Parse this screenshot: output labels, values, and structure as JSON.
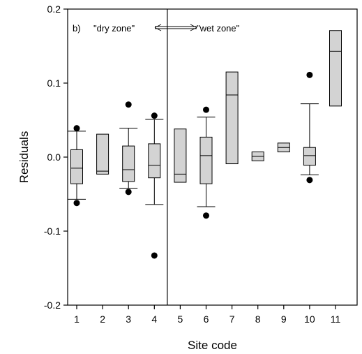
{
  "chart_data": {
    "type": "boxplot",
    "panel_label": "b)",
    "xlabel": "Site code",
    "ylabel": "Residuals",
    "ylim": [
      -0.2,
      0.2
    ],
    "yticks": [
      -0.2,
      -0.1,
      0.0,
      0.1,
      0.2
    ],
    "ytick_labels": [
      "-0.2",
      "-0.1",
      "0.0",
      "0.1",
      "0.2"
    ],
    "grid": false,
    "zone_divider_after_site": 4,
    "annotations": {
      "dry_zone": "\"dry zone\"",
      "wet_zone": "\"wet zone\""
    },
    "box_fill": "#d3d3d3",
    "categories": [
      "1",
      "2",
      "3",
      "4",
      "5",
      "6",
      "7",
      "8",
      "9",
      "10",
      "11"
    ],
    "boxes": [
      {
        "site": "1",
        "q1": -0.036,
        "median": -0.015,
        "q3": 0.01,
        "whisker_low": -0.057,
        "whisker_high": 0.035,
        "outliers": [
          0.039,
          -0.062
        ]
      },
      {
        "site": "2",
        "q1": -0.023,
        "median": -0.019,
        "q3": 0.031,
        "whisker_low": null,
        "whisker_high": null,
        "outliers": []
      },
      {
        "site": "3",
        "q1": -0.033,
        "median": -0.017,
        "q3": 0.015,
        "whisker_low": -0.042,
        "whisker_high": 0.039,
        "outliers": [
          0.071,
          -0.047
        ]
      },
      {
        "site": "4",
        "q1": -0.028,
        "median": -0.011,
        "q3": 0.018,
        "whisker_low": -0.064,
        "whisker_high": 0.051,
        "outliers": [
          0.056,
          -0.133
        ]
      },
      {
        "site": "5",
        "q1": -0.034,
        "median": -0.023,
        "q3": 0.038,
        "whisker_low": null,
        "whisker_high": null,
        "outliers": []
      },
      {
        "site": "6",
        "q1": -0.036,
        "median": 0.002,
        "q3": 0.027,
        "whisker_low": -0.067,
        "whisker_high": 0.054,
        "outliers": [
          0.064,
          -0.079
        ]
      },
      {
        "site": "7",
        "q1": -0.009,
        "median": 0.084,
        "q3": 0.115,
        "whisker_low": null,
        "whisker_high": null,
        "outliers": []
      },
      {
        "site": "8",
        "q1": -0.005,
        "median": 0.001,
        "q3": 0.007,
        "whisker_low": null,
        "whisker_high": null,
        "outliers": []
      },
      {
        "site": "9",
        "q1": 0.007,
        "median": 0.013,
        "q3": 0.019,
        "whisker_low": null,
        "whisker_high": null,
        "outliers": []
      },
      {
        "site": "10",
        "q1": -0.011,
        "median": 0.002,
        "q3": 0.013,
        "whisker_low": -0.024,
        "whisker_high": 0.072,
        "outliers": [
          0.111,
          -0.031
        ]
      },
      {
        "site": "11",
        "q1": 0.069,
        "median": 0.143,
        "q3": 0.171,
        "whisker_low": null,
        "whisker_high": null,
        "outliers": []
      }
    ]
  }
}
